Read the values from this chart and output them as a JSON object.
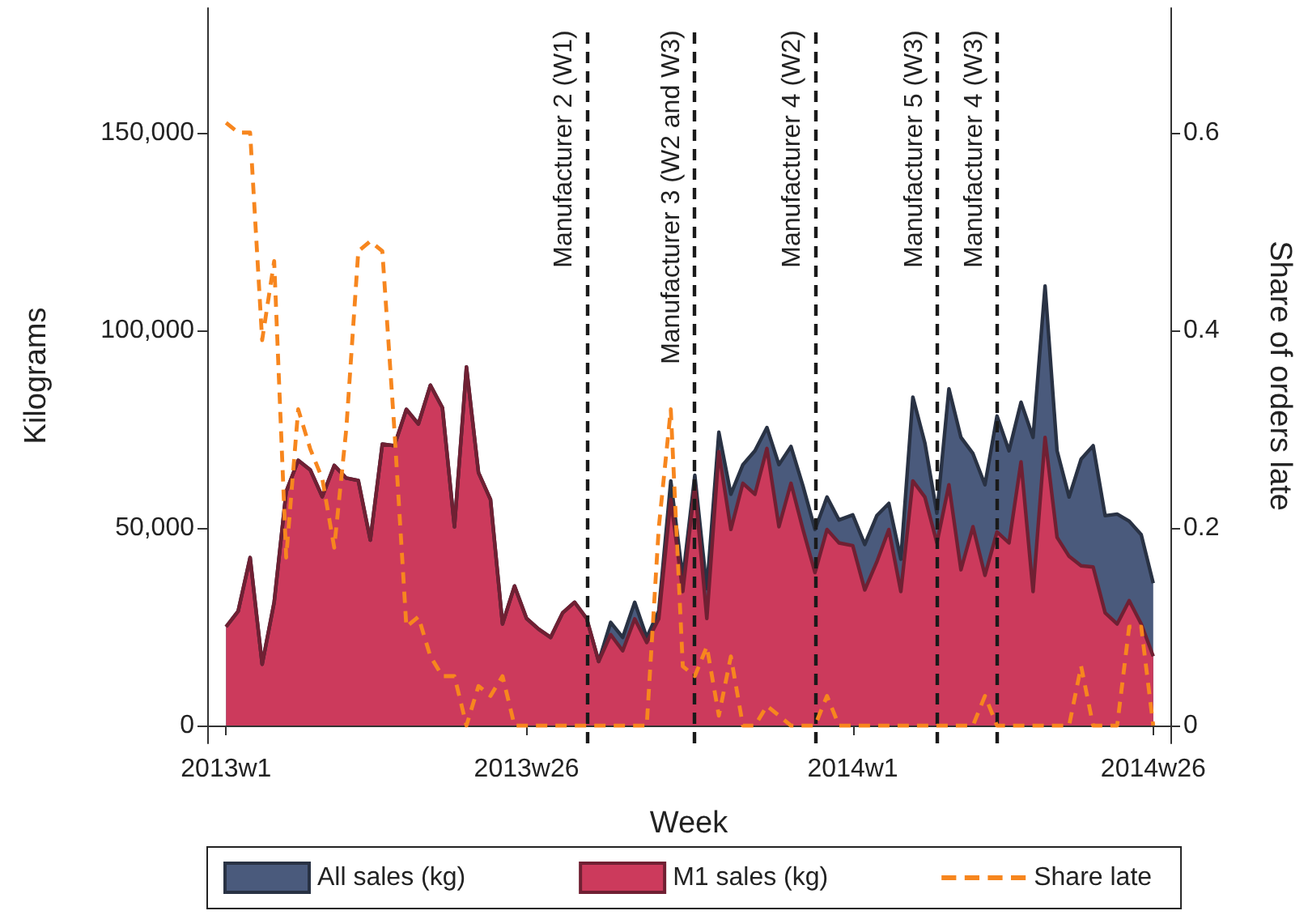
{
  "chart_data": {
    "type": "area",
    "xlabel": "Week",
    "ylabel": "Kilograms",
    "y2label": "Share of orders late",
    "x": [
      "2013-01-01",
      "2013-01-08",
      "2013-01-15",
      "2013-01-22",
      "2013-01-29",
      "2013-02-05",
      "2013-02-12",
      "2013-02-19",
      "2013-02-26",
      "2013-03-05",
      "2013-03-12",
      "2013-03-19",
      "2013-03-26",
      "2013-04-02",
      "2013-04-09",
      "2013-04-16",
      "2013-04-23",
      "2013-04-30",
      "2013-05-07",
      "2013-05-14",
      "2013-05-21",
      "2013-05-28",
      "2013-06-04",
      "2013-06-11",
      "2013-06-18",
      "2013-06-25",
      "2013-07-02",
      "2013-07-09",
      "2013-07-16",
      "2013-07-23",
      "2013-07-30",
      "2013-08-06",
      "2013-08-13",
      "2013-08-20",
      "2013-08-27",
      "2013-09-03",
      "2013-09-10",
      "2013-09-17",
      "2013-09-24",
      "2013-10-01",
      "2013-10-08",
      "2013-10-15",
      "2013-10-22",
      "2013-10-29",
      "2013-11-05",
      "2013-11-12",
      "2013-11-19",
      "2013-11-26",
      "2013-12-03",
      "2013-12-10",
      "2013-12-17",
      "2013-12-24",
      "2014-01-01",
      "2014-01-08",
      "2014-01-15",
      "2014-01-22",
      "2014-01-29",
      "2014-02-05",
      "2014-02-12",
      "2014-02-19",
      "2014-02-26",
      "2014-03-05",
      "2014-03-12",
      "2014-03-19",
      "2014-03-26",
      "2014-04-02",
      "2014-04-09",
      "2014-04-16",
      "2014-04-23",
      "2014-04-30",
      "2014-05-07",
      "2014-05-14",
      "2014-05-21",
      "2014-05-28",
      "2014-06-04",
      "2014-06-11",
      "2014-06-18",
      "2014-06-25"
    ],
    "xlim": [
      "2012-12-21",
      "2014-07-05"
    ],
    "xticks": [
      {
        "value": "2013-01-01",
        "label": "2013w1"
      },
      {
        "value": "2013-06-25",
        "label": "2013w26"
      },
      {
        "value": "2014-01-01",
        "label": "2014w1"
      },
      {
        "value": "2014-06-25",
        "label": "2014w26"
      }
    ],
    "series": [
      {
        "name": "All sales (kg)",
        "color": "#4a5a7c",
        "values": [
          25000,
          28900,
          42500,
          15500,
          31200,
          59200,
          67100,
          64700,
          57900,
          65800,
          62600,
          62000,
          46900,
          71200,
          70800,
          80000,
          76300,
          86100,
          80400,
          50300,
          90700,
          64000,
          57200,
          25700,
          35300,
          27100,
          24400,
          22300,
          28500,
          31200,
          27100,
          16200,
          26100,
          22300,
          31200,
          22300,
          29000,
          61900,
          37300,
          63300,
          34600,
          74200,
          58500,
          66000,
          69500,
          75400,
          66000,
          70600,
          60600,
          49600,
          57800,
          52000,
          53300,
          45800,
          53100,
          56200,
          42100,
          83100,
          71500,
          53700,
          85200,
          72900,
          68800,
          60900,
          78300,
          69500,
          81800,
          72900,
          111200,
          69500,
          57800,
          67400,
          70800,
          53100,
          53500,
          51700,
          48300,
          36000
        ]
      },
      {
        "name": "M1 sales (kg)",
        "color": "#cc3a5c",
        "values": [
          25000,
          28900,
          42500,
          15500,
          31200,
          59200,
          67100,
          64700,
          57900,
          65800,
          62600,
          62000,
          46900,
          71200,
          70800,
          80000,
          76300,
          86100,
          80400,
          50300,
          90700,
          64000,
          57200,
          25700,
          35300,
          27100,
          24400,
          22300,
          28500,
          31200,
          27100,
          16200,
          23000,
          18900,
          27000,
          21000,
          27000,
          57200,
          33900,
          60600,
          27100,
          69300,
          49600,
          61300,
          58500,
          70100,
          50300,
          61300,
          49600,
          38700,
          49600,
          46200,
          45500,
          34300,
          41400,
          49600,
          33900,
          61900,
          57800,
          46200,
          60900,
          39400,
          50300,
          38000,
          49000,
          46200,
          66700,
          33900,
          72900,
          47600,
          42800,
          40400,
          40100,
          28500,
          25700,
          31600,
          25700,
          17500
        ]
      },
      {
        "name": "Share late",
        "type": "line",
        "axis": "y2",
        "color": "#f7861e",
        "line_style": "dashed",
        "values": [
          0.61,
          0.6,
          0.6,
          0.39,
          0.47,
          0.17,
          0.32,
          0.28,
          0.25,
          0.18,
          0.3,
          0.48,
          0.49,
          0.48,
          0.3,
          0.1,
          0.11,
          0.07,
          0.05,
          0.05,
          0,
          0.04,
          0.03,
          0.05,
          0,
          0,
          0,
          0,
          0,
          0,
          0,
          0,
          0,
          0,
          0,
          0,
          0.2,
          0.32,
          0.06,
          0.05,
          0.08,
          0.01,
          0.07,
          0,
          0,
          0.02,
          0.01,
          0,
          0,
          0,
          0.03,
          0,
          0,
          0,
          0,
          0,
          0,
          0,
          0,
          0,
          0,
          0,
          0,
          0.03,
          0,
          0,
          0,
          0,
          0,
          0,
          0,
          0.06,
          0,
          0,
          0,
          0.1,
          0.1,
          0
        ]
      }
    ],
    "ylim": [
      -4500,
      181500
    ],
    "yticks": [
      0,
      {
        "value": 50000,
        "label": "50,000"
      },
      {
        "value": 100000,
        "label": "100,000"
      },
      {
        "value": 150000,
        "label": "150,000"
      }
    ],
    "y2lim": [
      -0.018,
      0.726
    ],
    "y2ticks": [
      0,
      0.2,
      0.4,
      0.6
    ],
    "ref_lines": [
      {
        "axis": "x",
        "value": "2013-07-30",
        "label": "Manufacturer 2 (W1)",
        "color": "#1a1a1a",
        "line_style": "dashed"
      },
      {
        "axis": "x",
        "value": "2013-10-01",
        "label": "Manufacturer 3 (W2 and W3)",
        "color": "#1a1a1a",
        "line_style": "dashed"
      },
      {
        "axis": "x",
        "value": "2013-12-10",
        "label": "Manufacturer 4 (W2)",
        "color": "#1a1a1a",
        "line_style": "dashed"
      },
      {
        "axis": "x",
        "value": "2014-02-19",
        "label": "Manufacturer 5 (W3)",
        "color": "#1a1a1a",
        "line_style": "dashed"
      },
      {
        "axis": "x",
        "value": "2014-03-26",
        "label": "Manufacturer 4 (W3)",
        "color": "#1a1a1a",
        "line_style": "dashed"
      }
    ],
    "marker": "none",
    "grid": false,
    "legend": "bottom"
  }
}
